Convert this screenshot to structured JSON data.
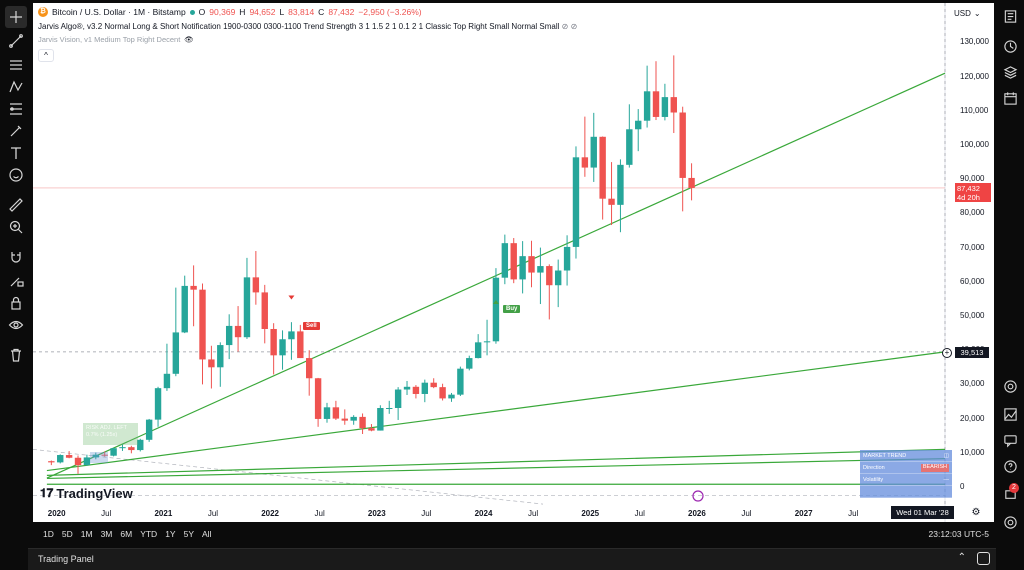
{
  "header": {
    "symbol_title": "Bitcoin / U.S. Dollar · 1M · Bitstamp",
    "ohlc": {
      "open_label": "O",
      "open": "90,369",
      "high_label": "H",
      "high": "94,652",
      "low_label": "L",
      "low": "83,814",
      "close_label": "C",
      "close": "87,432",
      "change": "−2,950 (−3.26%)"
    },
    "indicator1": "Jarvis Algo®, v3.2 Normal Long & Short Notification 1900-0300 0300-1100 Trend Strength 3 1 1.5 2 1 0.1 2 1 Classic Top Right Small Normal Small",
    "indicator2": "Jarvis Vision, v1 Medium Top Right Decent",
    "collapse_glyph": "^"
  },
  "price_axis": {
    "currency": "USD",
    "labels": [
      "130,000",
      "120,000",
      "110,000",
      "100,000",
      "90,000",
      "80,000",
      "70,000",
      "60,000",
      "50,000",
      "40,000",
      "30,000",
      "20,000",
      "10,000",
      "0"
    ],
    "current_price": "87,432",
    "countdown": "4d 20h",
    "crosshair_price": "39,513"
  },
  "time_axis": {
    "labels": [
      {
        "text": "2020",
        "major": true
      },
      {
        "text": "Jul",
        "major": false
      },
      {
        "text": "2021",
        "major": true
      },
      {
        "text": "Jul",
        "major": false
      },
      {
        "text": "2022",
        "major": true
      },
      {
        "text": "Jul",
        "major": false
      },
      {
        "text": "2023",
        "major": true
      },
      {
        "text": "Jul",
        "major": false
      },
      {
        "text": "2024",
        "major": true
      },
      {
        "text": "Jul",
        "major": false
      },
      {
        "text": "2025",
        "major": true
      },
      {
        "text": "Jul",
        "major": false
      },
      {
        "text": "2026",
        "major": true
      },
      {
        "text": "Jul",
        "major": false
      },
      {
        "text": "2027",
        "major": true
      },
      {
        "text": "Jul",
        "major": false
      }
    ],
    "crosshair_date": "Wed 01 Mar '28"
  },
  "signals": {
    "sell": "Sell",
    "buy": "Buy"
  },
  "ghost_label": {
    "line1": "RISK ADJ. LEFT",
    "line2": "0.7% (1.25x)"
  },
  "market_table": {
    "rows": [
      {
        "label": "MARKET TREND",
        "value": ""
      },
      {
        "label": "Direction",
        "value": "BEARISH"
      },
      {
        "label": "Volatility",
        "value": "—"
      },
      {
        "label": "",
        "value": ""
      }
    ]
  },
  "branding": {
    "logo_text": "TradingView"
  },
  "timeframes": [
    "1D",
    "5D",
    "1M",
    "3M",
    "6M",
    "YTD",
    "1Y",
    "5Y",
    "All"
  ],
  "clock": "23:12:03 UTC-5",
  "trading_panel": {
    "label": "Trading Panel"
  },
  "notifications": {
    "count": "2"
  },
  "colors": {
    "up": "#26a69a",
    "down": "#ef5350",
    "trendline": "#3aa83a",
    "accent": "#2962ff"
  },
  "chart_data": {
    "type": "candlestick",
    "title": "Bitcoin / U.S. Dollar · 1M · Bitstamp",
    "xlabel": "",
    "ylabel": "",
    "ylim": [
      -4000,
      138000
    ],
    "x_range": [
      "2019-11",
      "2028-05"
    ],
    "candles": [
      {
        "t": "2019-12",
        "o": 7550,
        "h": 7750,
        "l": 6400,
        "c": 7200
      },
      {
        "t": "2020-01",
        "o": 7200,
        "h": 9550,
        "l": 6900,
        "c": 9350
      },
      {
        "t": "2020-02",
        "o": 9350,
        "h": 10500,
        "l": 8400,
        "c": 8550
      },
      {
        "t": "2020-03",
        "o": 8550,
        "h": 9200,
        "l": 3850,
        "c": 6400
      },
      {
        "t": "2020-04",
        "o": 6400,
        "h": 9450,
        "l": 6200,
        "c": 8650
      },
      {
        "t": "2020-05",
        "o": 8650,
        "h": 10050,
        "l": 8100,
        "c": 9450
      },
      {
        "t": "2020-06",
        "o": 9450,
        "h": 10400,
        "l": 8900,
        "c": 9150
      },
      {
        "t": "2020-07",
        "o": 9150,
        "h": 11450,
        "l": 8950,
        "c": 11350
      },
      {
        "t": "2020-08",
        "o": 11350,
        "h": 12450,
        "l": 10550,
        "c": 11650
      },
      {
        "t": "2020-09",
        "o": 11650,
        "h": 12050,
        "l": 9850,
        "c": 10800
      },
      {
        "t": "2020-10",
        "o": 10800,
        "h": 14100,
        "l": 10400,
        "c": 13800
      },
      {
        "t": "2020-11",
        "o": 13800,
        "h": 19900,
        "l": 13200,
        "c": 19700
      },
      {
        "t": "2020-12",
        "o": 19700,
        "h": 29300,
        "l": 17600,
        "c": 28900
      },
      {
        "t": "2021-01",
        "o": 28900,
        "h": 41900,
        "l": 28100,
        "c": 33100
      },
      {
        "t": "2021-02",
        "o": 33100,
        "h": 58300,
        "l": 32400,
        "c": 45200
      },
      {
        "t": "2021-03",
        "o": 45200,
        "h": 61800,
        "l": 45000,
        "c": 58800
      },
      {
        "t": "2021-04",
        "o": 58800,
        "h": 64800,
        "l": 47000,
        "c": 57700
      },
      {
        "t": "2021-05",
        "o": 57700,
        "h": 59500,
        "l": 30000,
        "c": 37300
      },
      {
        "t": "2021-06",
        "o": 37300,
        "h": 41300,
        "l": 28800,
        "c": 35000
      },
      {
        "t": "2021-07",
        "o": 35000,
        "h": 42300,
        "l": 29300,
        "c": 41500
      },
      {
        "t": "2021-08",
        "o": 41500,
        "h": 50500,
        "l": 37400,
        "c": 47100
      },
      {
        "t": "2021-09",
        "o": 47100,
        "h": 52900,
        "l": 39600,
        "c": 43800
      },
      {
        "t": "2021-10",
        "o": 43800,
        "h": 67000,
        "l": 43300,
        "c": 61300
      },
      {
        "t": "2021-11",
        "o": 61300,
        "h": 69000,
        "l": 53300,
        "c": 56900
      },
      {
        "t": "2021-12",
        "o": 56900,
        "h": 59100,
        "l": 42000,
        "c": 46200
      },
      {
        "t": "2022-01",
        "o": 46200,
        "h": 47900,
        "l": 32900,
        "c": 38500
      },
      {
        "t": "2022-02",
        "o": 38500,
        "h": 45800,
        "l": 34300,
        "c": 43200
      },
      {
        "t": "2022-03",
        "o": 43200,
        "h": 48200,
        "l": 37200,
        "c": 45500
      },
      {
        "t": "2022-04",
        "o": 45500,
        "h": 47400,
        "l": 37700,
        "c": 37700
      },
      {
        "t": "2022-05",
        "o": 37700,
        "h": 40000,
        "l": 26700,
        "c": 31800
      },
      {
        "t": "2022-06",
        "o": 31800,
        "h": 31900,
        "l": 17600,
        "c": 19900
      },
      {
        "t": "2022-07",
        "o": 19900,
        "h": 24600,
        "l": 18800,
        "c": 23300
      },
      {
        "t": "2022-08",
        "o": 23300,
        "h": 25200,
        "l": 19600,
        "c": 20000
      },
      {
        "t": "2022-09",
        "o": 20000,
        "h": 22700,
        "l": 18200,
        "c": 19400
      },
      {
        "t": "2022-10",
        "o": 19400,
        "h": 21000,
        "l": 18200,
        "c": 20500
      },
      {
        "t": "2022-11",
        "o": 20500,
        "h": 21500,
        "l": 15500,
        "c": 17200
      },
      {
        "t": "2022-12",
        "o": 17200,
        "h": 18400,
        "l": 16300,
        "c": 16500
      },
      {
        "t": "2023-01",
        "o": 16500,
        "h": 23900,
        "l": 16500,
        "c": 23100
      },
      {
        "t": "2023-02",
        "o": 23100,
        "h": 25200,
        "l": 21400,
        "c": 23100
      },
      {
        "t": "2023-03",
        "o": 23100,
        "h": 29200,
        "l": 19600,
        "c": 28500
      },
      {
        "t": "2023-04",
        "o": 28500,
        "h": 31000,
        "l": 26900,
        "c": 29300
      },
      {
        "t": "2023-05",
        "o": 29300,
        "h": 29800,
        "l": 25900,
        "c": 27200
      },
      {
        "t": "2023-06",
        "o": 27200,
        "h": 31400,
        "l": 24800,
        "c": 30500
      },
      {
        "t": "2023-07",
        "o": 30500,
        "h": 31800,
        "l": 28900,
        "c": 29200
      },
      {
        "t": "2023-08",
        "o": 29200,
        "h": 30200,
        "l": 25300,
        "c": 25900
      },
      {
        "t": "2023-09",
        "o": 25900,
        "h": 27500,
        "l": 24900,
        "c": 27000
      },
      {
        "t": "2023-10",
        "o": 27000,
        "h": 35200,
        "l": 26600,
        "c": 34600
      },
      {
        "t": "2023-11",
        "o": 34600,
        "h": 38400,
        "l": 34100,
        "c": 37700
      },
      {
        "t": "2023-12",
        "o": 37700,
        "h": 44700,
        "l": 37600,
        "c": 42300
      },
      {
        "t": "2024-01",
        "o": 42300,
        "h": 48900,
        "l": 38500,
        "c": 42600
      },
      {
        "t": "2024-02",
        "o": 42600,
        "h": 64000,
        "l": 41900,
        "c": 61200
      },
      {
        "t": "2024-03",
        "o": 61200,
        "h": 73800,
        "l": 59300,
        "c": 71300
      },
      {
        "t": "2024-04",
        "o": 71300,
        "h": 72800,
        "l": 59600,
        "c": 60700
      },
      {
        "t": "2024-05",
        "o": 60700,
        "h": 71900,
        "l": 56600,
        "c": 67500
      },
      {
        "t": "2024-06",
        "o": 67500,
        "h": 72000,
        "l": 58400,
        "c": 62700
      },
      {
        "t": "2024-07",
        "o": 62700,
        "h": 70000,
        "l": 53500,
        "c": 64600
      },
      {
        "t": "2024-08",
        "o": 64600,
        "h": 65100,
        "l": 49000,
        "c": 59000
      },
      {
        "t": "2024-09",
        "o": 59000,
        "h": 66500,
        "l": 52600,
        "c": 63300
      },
      {
        "t": "2024-10",
        "o": 63300,
        "h": 73600,
        "l": 58900,
        "c": 70200
      },
      {
        "t": "2024-11",
        "o": 70200,
        "h": 99600,
        "l": 66800,
        "c": 96400
      },
      {
        "t": "2024-12",
        "o": 96400,
        "h": 108300,
        "l": 90700,
        "c": 93400
      },
      {
        "t": "2025-01",
        "o": 93400,
        "h": 109400,
        "l": 89200,
        "c": 102400
      },
      {
        "t": "2025-02",
        "o": 102400,
        "h": 102500,
        "l": 78200,
        "c": 84300
      },
      {
        "t": "2025-03",
        "o": 84300,
        "h": 95000,
        "l": 76600,
        "c": 82500
      },
      {
        "t": "2025-04",
        "o": 82500,
        "h": 95800,
        "l": 74500,
        "c": 94200
      },
      {
        "t": "2025-05",
        "o": 94200,
        "h": 111900,
        "l": 93400,
        "c": 104600
      },
      {
        "t": "2025-06",
        "o": 104600,
        "h": 110500,
        "l": 98200,
        "c": 107100
      },
      {
        "t": "2025-07",
        "o": 107100,
        "h": 123200,
        "l": 105100,
        "c": 115700
      },
      {
        "t": "2025-08",
        "o": 115700,
        "h": 124500,
        "l": 107300,
        "c": 108200
      },
      {
        "t": "2025-09",
        "o": 108200,
        "h": 117900,
        "l": 107200,
        "c": 114000
      },
      {
        "t": "2025-10",
        "o": 114000,
        "h": 126200,
        "l": 103500,
        "c": 109500
      },
      {
        "t": "2025-11",
        "o": 109500,
        "h": 111200,
        "l": 80600,
        "c": 90369
      },
      {
        "t": "2025-12",
        "o": 90369,
        "h": 94652,
        "l": 83814,
        "c": 87432
      }
    ],
    "trendlines": [
      {
        "from": [
          "2019-12",
          2600
        ],
        "to": [
          "2028-05",
          121000
        ]
      },
      {
        "from": [
          "2019-12",
          4800
        ],
        "to": [
          "2028-05",
          39513
        ]
      },
      {
        "from": [
          "2019-12",
          3400
        ],
        "to": [
          "2028-05",
          11000
        ]
      },
      {
        "from": [
          "2019-12",
          2500
        ],
        "to": [
          "2028-05",
          8300
        ]
      },
      {
        "from": [
          "2019-12",
          800
        ],
        "to": [
          "2028-05",
          800
        ]
      }
    ]
  }
}
